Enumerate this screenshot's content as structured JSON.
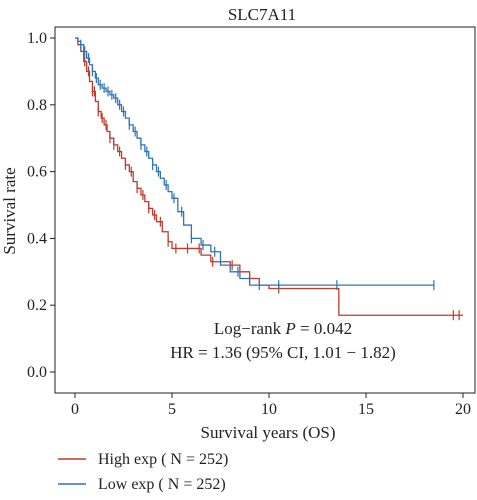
{
  "chart_data": {
    "type": "line",
    "subtype": "kaplan-meier",
    "title": "SLC7A11",
    "xlabel": "Survival years (OS)",
    "ylabel": "Survival rate",
    "xlim": [
      0,
      20
    ],
    "ylim": [
      0.0,
      1.0
    ],
    "xticks": [
      "0",
      "5",
      "10",
      "15",
      "20"
    ],
    "yticks": [
      "0.0",
      "0.2",
      "0.4",
      "0.6",
      "0.8",
      "1.0"
    ],
    "grid": false,
    "legend_position": "bottom-left",
    "annotations": {
      "line1_prefix": "Log−rank",
      "line1_p": "P",
      "line1_value": " = 0.042",
      "line2": "HR = 1.36 (95% CI, 1.01 − 1.82)"
    },
    "series": [
      {
        "name": "High exp ( N = 252)",
        "color": "#c0392b",
        "x": [
          0,
          0.15,
          0.3,
          0.45,
          0.6,
          0.75,
          0.9,
          1.05,
          1.2,
          1.35,
          1.5,
          1.65,
          1.8,
          2.0,
          2.2,
          2.4,
          2.6,
          2.8,
          3.0,
          3.2,
          3.4,
          3.6,
          3.8,
          4.0,
          4.2,
          4.5,
          4.8,
          5.0,
          5.5,
          6.0,
          6.5,
          7.0,
          7.5,
          8.0,
          8.5,
          9.0,
          9.5,
          10.0,
          12.0,
          13.5,
          13.6,
          20.0
        ],
        "y": [
          1.0,
          0.98,
          0.96,
          0.93,
          0.9,
          0.87,
          0.84,
          0.81,
          0.78,
          0.76,
          0.74,
          0.72,
          0.7,
          0.68,
          0.66,
          0.64,
          0.62,
          0.6,
          0.57,
          0.55,
          0.53,
          0.51,
          0.49,
          0.47,
          0.45,
          0.42,
          0.39,
          0.37,
          0.37,
          0.37,
          0.35,
          0.33,
          0.33,
          0.32,
          0.3,
          0.28,
          0.26,
          0.25,
          0.25,
          0.25,
          0.17,
          0.17
        ],
        "censor_x": [
          0.5,
          0.7,
          0.9,
          1.0,
          1.2,
          1.4,
          1.6,
          1.8,
          2.0,
          2.3,
          2.6,
          2.9,
          3.2,
          3.5,
          3.8,
          4.1,
          4.4,
          4.8,
          5.2,
          5.8,
          6.4,
          7.1,
          8.1,
          9.0,
          10.5,
          19.5,
          19.8
        ]
      },
      {
        "name": "Low exp ( N = 252)",
        "color": "#2e75b6",
        "x": [
          0,
          0.15,
          0.3,
          0.45,
          0.6,
          0.75,
          0.9,
          1.05,
          1.2,
          1.4,
          1.6,
          1.8,
          2.0,
          2.2,
          2.4,
          2.6,
          2.8,
          3.0,
          3.2,
          3.4,
          3.6,
          3.8,
          4.0,
          4.2,
          4.4,
          4.6,
          4.8,
          5.0,
          5.3,
          5.6,
          6.0,
          6.5,
          7.0,
          7.5,
          8.0,
          8.5,
          9.0,
          10.0,
          12.0,
          14.0,
          18.5
        ],
        "y": [
          1.0,
          0.99,
          0.98,
          0.96,
          0.94,
          0.92,
          0.9,
          0.88,
          0.86,
          0.85,
          0.84,
          0.83,
          0.82,
          0.8,
          0.78,
          0.76,
          0.74,
          0.72,
          0.7,
          0.68,
          0.66,
          0.64,
          0.62,
          0.6,
          0.58,
          0.56,
          0.54,
          0.52,
          0.48,
          0.44,
          0.4,
          0.38,
          0.36,
          0.32,
          0.3,
          0.28,
          0.26,
          0.26,
          0.26,
          0.26,
          0.26
        ],
        "censor_x": [
          0.3,
          0.5,
          0.7,
          0.9,
          1.1,
          1.3,
          1.5,
          1.7,
          1.9,
          2.1,
          2.3,
          2.5,
          2.8,
          3.1,
          3.4,
          3.7,
          4.0,
          4.3,
          4.7,
          5.1,
          5.5,
          6.0,
          6.6,
          7.2,
          8.4,
          9.5,
          10.5,
          13.5,
          18.5
        ]
      }
    ]
  }
}
